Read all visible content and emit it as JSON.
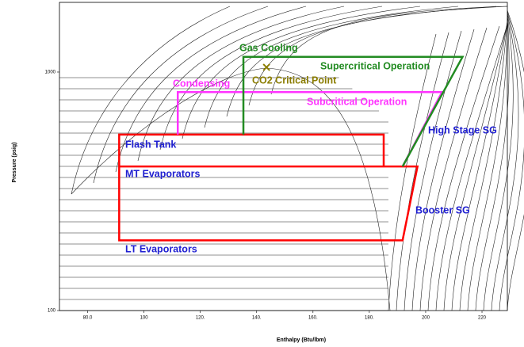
{
  "chart_data": {
    "type": "line",
    "x_label": "Enthalpy (Btu/lbm)",
    "y_label": "Pressure (psig)",
    "xlim": [
      70,
      229
    ],
    "ylim": [
      100,
      1960
    ],
    "y_log": true,
    "xticks": [
      {
        "value": 80,
        "label": "80.0"
      },
      100,
      {
        "value": 120,
        "label": "120."
      },
      {
        "value": 140,
        "label": "140."
      },
      {
        "value": 160,
        "label": "160."
      },
      {
        "value": 180,
        "label": "180."
      },
      200,
      220
    ],
    "yticks": [
      100,
      1000
    ],
    "series": [
      {
        "color": "#ff0000",
        "x": [
          91.2,
          91.2,
          185.1,
          185.1
        ],
        "values": [
          402,
          547,
          547,
          402
        ]
      },
      {
        "color": "#ff0000",
        "x": [
          91.2,
          197.1,
          191.8,
          91.2,
          91.2
        ],
        "values": [
          402,
          402,
          197,
          197,
          402
        ]
      },
      {
        "color": "#ff33ff",
        "x": [
          112.0,
          112.0,
          205.8,
          191.8
        ],
        "values": [
          547,
          824,
          824,
          402
        ]
      },
      {
        "color": "#228b22",
        "x": [
          135.3,
          135.3,
          213.1,
          191.8
        ],
        "values": [
          547,
          1158,
          1158,
          402
        ]
      }
    ],
    "critical_point": {
      "x": 143.5,
      "y": 1047,
      "color": "#8b7d00"
    },
    "annotations": [
      {
        "text": "Gas Cooling",
        "color": "#228b22"
      },
      {
        "text": "Supercritical Operation",
        "color": "#228b22"
      },
      {
        "text": "Condensing",
        "color": "#ff33ff"
      },
      {
        "text": "CO2 Critical Point",
        "color": "#8b7d00"
      },
      {
        "text": "Subcritical Operation",
        "color": "#ff33ff"
      },
      {
        "text": "High Stage SG",
        "color": "#1f1fd1"
      },
      {
        "text": "Flash Tank",
        "color": "#1f1fd1"
      },
      {
        "text": "MT Evaporators",
        "color": "#1f1fd1"
      },
      {
        "text": "Booster SG",
        "color": "#1f1fd1"
      },
      {
        "text": "LT Evaporators",
        "color": "#1f1fd1"
      }
    ]
  }
}
